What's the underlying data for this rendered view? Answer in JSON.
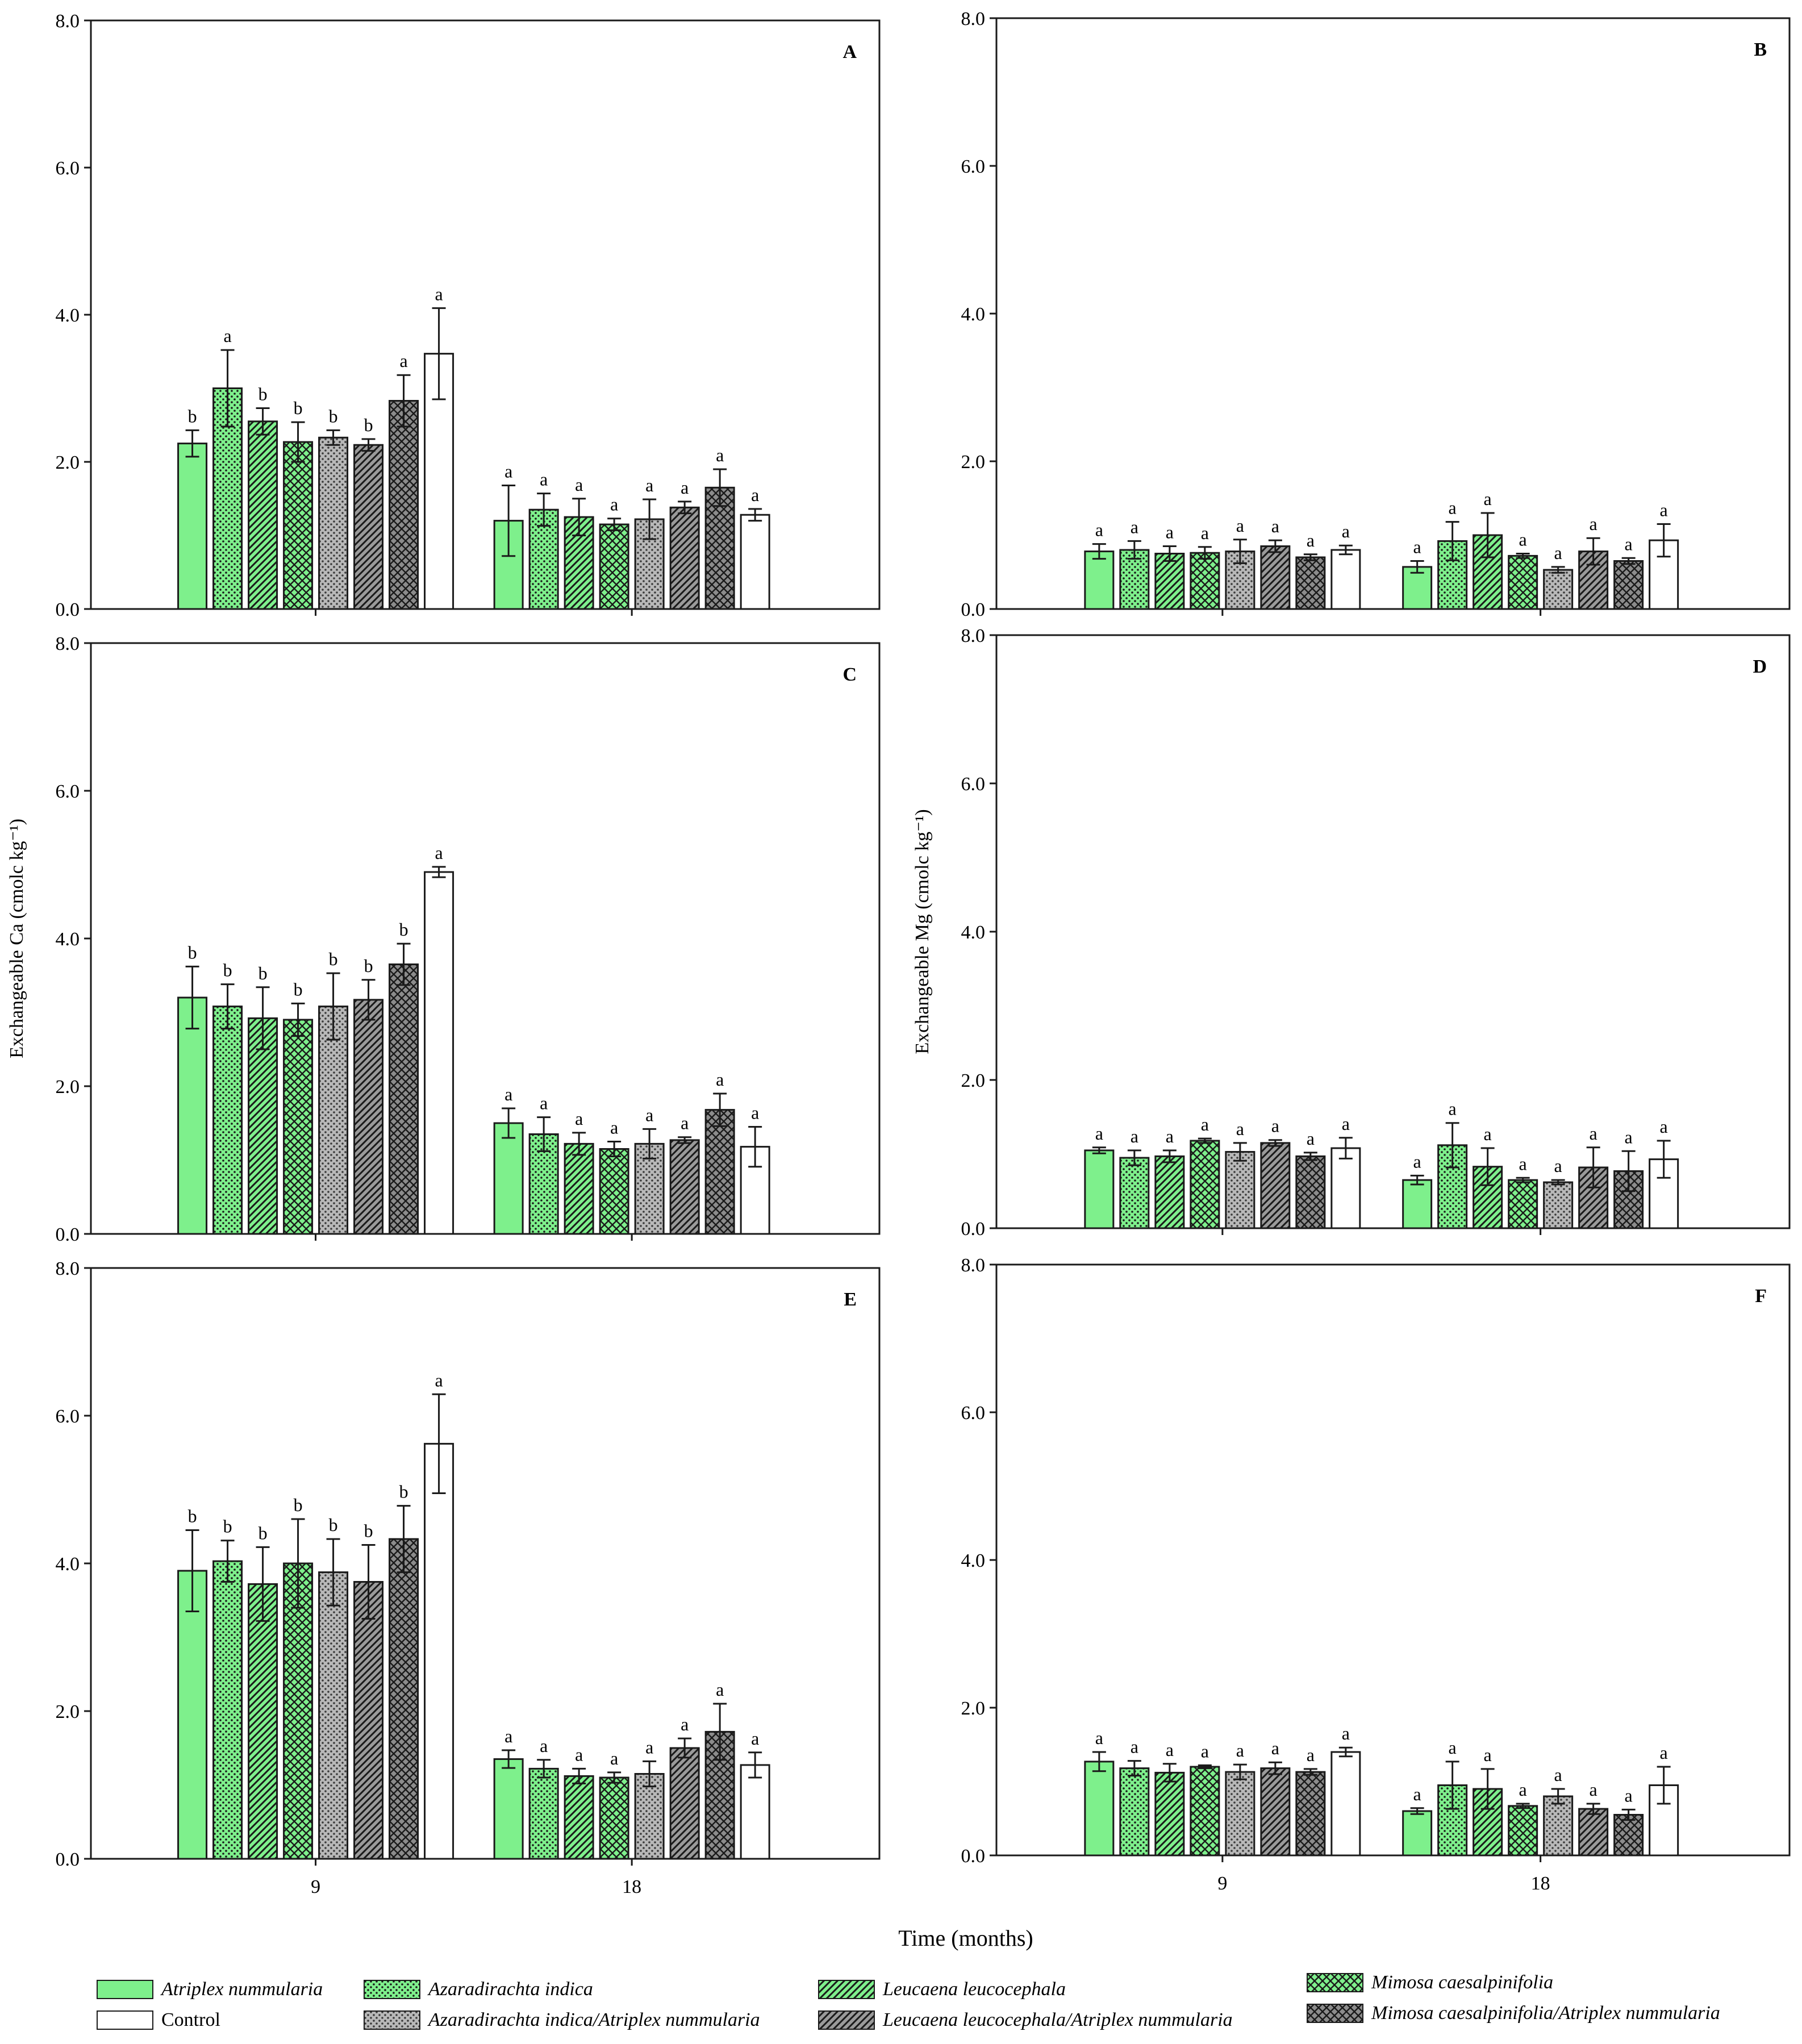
{
  "colors": {
    "green": "#7ef08c",
    "white": "#ffffff",
    "gray": "#b4b4b4",
    "darkgray": "#8c8c8c",
    "stroke": "#1a1a1a"
  },
  "figure": {
    "x_title": "Time (months)",
    "y_title_ca": "Exchangeable Ca (cmolc kg⁻¹)",
    "y_title_mg": "Exchangeable Mg (cmolc kg⁻¹)"
  },
  "chart_data": [
    {
      "type": "bar",
      "panel": "A",
      "title": "A",
      "xlabel": "Time (months)",
      "ylabel": "",
      "ylim": [
        0,
        8
      ],
      "yticks": [
        "0.0",
        "2.0",
        "4.0",
        "6.0",
        "8.0"
      ],
      "categories": [
        "9",
        "18"
      ],
      "series": [
        {
          "name": "Atriplex nummularia",
          "values": [
            2.25,
            1.2
          ],
          "errors": [
            0.18,
            0.48
          ],
          "letters": [
            "b",
            "a"
          ]
        },
        {
          "name": "Azaradirachta indica",
          "values": [
            3.0,
            1.35
          ],
          "errors": [
            0.52,
            0.22
          ],
          "letters": [
            "a",
            "a"
          ]
        },
        {
          "name": "Leucaena leucocephala",
          "values": [
            2.55,
            1.25
          ],
          "errors": [
            0.18,
            0.25
          ],
          "letters": [
            "b",
            "a"
          ]
        },
        {
          "name": "Mimosa caesalpinifolia",
          "values": [
            2.27,
            1.15
          ],
          "errors": [
            0.27,
            0.08
          ],
          "letters": [
            "b",
            "a"
          ]
        },
        {
          "name": "Azaradirachta indica/Atriplex nummularia",
          "values": [
            2.33,
            1.22
          ],
          "errors": [
            0.1,
            0.27
          ],
          "letters": [
            "b",
            "a"
          ]
        },
        {
          "name": "Leucaena leucocephala/Atriplex nummularia",
          "values": [
            2.23,
            1.38
          ],
          "errors": [
            0.08,
            0.08
          ],
          "letters": [
            "b",
            "a"
          ]
        },
        {
          "name": "Mimosa caesalpinifolia/Atriplex nummularia",
          "values": [
            2.83,
            1.65
          ],
          "errors": [
            0.35,
            0.25
          ],
          "letters": [
            "a",
            "a"
          ]
        },
        {
          "name": "Control",
          "values": [
            3.47,
            1.28
          ],
          "errors": [
            0.62,
            0.08
          ],
          "letters": [
            "a",
            "a"
          ]
        }
      ]
    },
    {
      "type": "bar",
      "panel": "B",
      "title": "B",
      "xlabel": "Time (months)",
      "ylabel": "",
      "ylim": [
        0,
        8
      ],
      "yticks": [
        "0.0",
        "2.0",
        "4.0",
        "6.0",
        "8.0"
      ],
      "categories": [
        "9",
        "18"
      ],
      "series": [
        {
          "name": "Atriplex nummularia",
          "values": [
            0.78,
            0.57
          ],
          "errors": [
            0.1,
            0.08
          ],
          "letters": [
            "a",
            "a"
          ]
        },
        {
          "name": "Azaradirachta indica",
          "values": [
            0.8,
            0.92
          ],
          "errors": [
            0.12,
            0.26
          ],
          "letters": [
            "a",
            "a"
          ]
        },
        {
          "name": "Leucaena leucocephala",
          "values": [
            0.75,
            1.0
          ],
          "errors": [
            0.1,
            0.3
          ],
          "letters": [
            "a",
            "a"
          ]
        },
        {
          "name": "Mimosa caesalpinifolia",
          "values": [
            0.76,
            0.72
          ],
          "errors": [
            0.08,
            0.03
          ],
          "letters": [
            "a",
            "a"
          ]
        },
        {
          "name": "Azaradirachta indica/Atriplex nummularia",
          "values": [
            0.78,
            0.53
          ],
          "errors": [
            0.16,
            0.04
          ],
          "letters": [
            "a",
            "a"
          ]
        },
        {
          "name": "Leucaena leucocephala/Atriplex nummularia",
          "values": [
            0.85,
            0.78
          ],
          "errors": [
            0.08,
            0.18
          ],
          "letters": [
            "a",
            "a"
          ]
        },
        {
          "name": "Mimosa caesalpinifolia/Atriplex nummularia",
          "values": [
            0.7,
            0.65
          ],
          "errors": [
            0.04,
            0.04
          ],
          "letters": [
            "a",
            "a"
          ]
        },
        {
          "name": "Control",
          "values": [
            0.8,
            0.93
          ],
          "errors": [
            0.06,
            0.22
          ],
          "letters": [
            "a",
            "a"
          ]
        }
      ]
    },
    {
      "type": "bar",
      "panel": "C",
      "title": "C",
      "xlabel": "Time (months)",
      "ylabel": "Exchangeable Ca (cmolc kg⁻¹)",
      "ylim": [
        0,
        8
      ],
      "yticks": [
        "0.0",
        "2.0",
        "4.0",
        "6.0",
        "8.0"
      ],
      "categories": [
        "9",
        "18"
      ],
      "series": [
        {
          "name": "Atriplex nummularia",
          "values": [
            3.2,
            1.5
          ],
          "errors": [
            0.42,
            0.2
          ],
          "letters": [
            "b",
            "a"
          ]
        },
        {
          "name": "Azaradirachta indica",
          "values": [
            3.08,
            1.35
          ],
          "errors": [
            0.3,
            0.23
          ],
          "letters": [
            "b",
            "a"
          ]
        },
        {
          "name": "Leucaena leucocephala",
          "values": [
            2.92,
            1.22
          ],
          "errors": [
            0.42,
            0.15
          ],
          "letters": [
            "b",
            "a"
          ]
        },
        {
          "name": "Mimosa caesalpinifolia",
          "values": [
            2.9,
            1.15
          ],
          "errors": [
            0.22,
            0.1
          ],
          "letters": [
            "b",
            "a"
          ]
        },
        {
          "name": "Azaradirachta indica/Atriplex nummularia",
          "values": [
            3.08,
            1.22
          ],
          "errors": [
            0.45,
            0.2
          ],
          "letters": [
            "b",
            "a"
          ]
        },
        {
          "name": "Leucaena leucocephala/Atriplex nummularia",
          "values": [
            3.17,
            1.27
          ],
          "errors": [
            0.27,
            0.04
          ],
          "letters": [
            "b",
            "a"
          ]
        },
        {
          "name": "Mimosa caesalpinifolia/Atriplex nummularia",
          "values": [
            3.65,
            1.68
          ],
          "errors": [
            0.28,
            0.22
          ],
          "letters": [
            "b",
            "a"
          ]
        },
        {
          "name": "Control",
          "values": [
            4.9,
            1.18
          ],
          "errors": [
            0.07,
            0.27
          ],
          "letters": [
            "a",
            "a"
          ]
        }
      ]
    },
    {
      "type": "bar",
      "panel": "D",
      "title": "D",
      "xlabel": "Time (months)",
      "ylabel": "Exchangeable Mg (cmolc kg⁻¹)",
      "ylim": [
        0,
        8
      ],
      "yticks": [
        "0.0",
        "2.0",
        "4.0",
        "6.0",
        "8.0"
      ],
      "categories": [
        "9",
        "18"
      ],
      "series": [
        {
          "name": "Atriplex nummularia",
          "values": [
            1.05,
            0.65
          ],
          "errors": [
            0.04,
            0.06
          ],
          "letters": [
            "a",
            "a"
          ]
        },
        {
          "name": "Azaradirachta indica",
          "values": [
            0.95,
            1.12
          ],
          "errors": [
            0.1,
            0.3
          ],
          "letters": [
            "a",
            "a"
          ]
        },
        {
          "name": "Leucaena leucocephala",
          "values": [
            0.97,
            0.83
          ],
          "errors": [
            0.08,
            0.25
          ],
          "letters": [
            "a",
            "a"
          ]
        },
        {
          "name": "Mimosa caesalpinifolia",
          "values": [
            1.18,
            0.65
          ],
          "errors": [
            0.03,
            0.03
          ],
          "letters": [
            "a",
            "a"
          ]
        },
        {
          "name": "Azaradirachta indica/Atriplex nummularia",
          "values": [
            1.03,
            0.62
          ],
          "errors": [
            0.12,
            0.03
          ],
          "letters": [
            "a",
            "a"
          ]
        },
        {
          "name": "Leucaena leucocephala/Atriplex nummularia",
          "values": [
            1.15,
            0.82
          ],
          "errors": [
            0.04,
            0.27
          ],
          "letters": [
            "a",
            "a"
          ]
        },
        {
          "name": "Mimosa caesalpinifolia/Atriplex nummularia",
          "values": [
            0.97,
            0.77
          ],
          "errors": [
            0.05,
            0.27
          ],
          "letters": [
            "a",
            "a"
          ]
        },
        {
          "name": "Control",
          "values": [
            1.08,
            0.93
          ],
          "errors": [
            0.14,
            0.25
          ],
          "letters": [
            "a",
            "a"
          ]
        }
      ]
    },
    {
      "type": "bar",
      "panel": "E",
      "title": "E",
      "xlabel": "Time (months)",
      "ylabel": "",
      "ylim": [
        0,
        8
      ],
      "yticks": [
        "0.0",
        "2.0",
        "4.0",
        "6.0",
        "8.0"
      ],
      "categories": [
        "9",
        "18"
      ],
      "series": [
        {
          "name": "Atriplex nummularia",
          "values": [
            3.9,
            1.35
          ],
          "errors": [
            0.55,
            0.12
          ],
          "letters": [
            "b",
            "a"
          ]
        },
        {
          "name": "Azaradirachta indica",
          "values": [
            4.03,
            1.22
          ],
          "errors": [
            0.28,
            0.12
          ],
          "letters": [
            "b",
            "a"
          ]
        },
        {
          "name": "Leucaena leucocephala",
          "values": [
            3.72,
            1.12
          ],
          "errors": [
            0.5,
            0.1
          ],
          "letters": [
            "b",
            "a"
          ]
        },
        {
          "name": "Mimosa caesalpinifolia",
          "values": [
            4.0,
            1.1
          ],
          "errors": [
            0.6,
            0.07
          ],
          "letters": [
            "b",
            "a"
          ]
        },
        {
          "name": "Azaradirachta indica/Atriplex nummularia",
          "values": [
            3.88,
            1.15
          ],
          "errors": [
            0.45,
            0.17
          ],
          "letters": [
            "b",
            "a"
          ]
        },
        {
          "name": "Leucaena leucocephala/Atriplex nummularia",
          "values": [
            3.75,
            1.5
          ],
          "errors": [
            0.5,
            0.13
          ],
          "letters": [
            "b",
            "a"
          ]
        },
        {
          "name": "Mimosa caesalpinifolia/Atriplex nummularia",
          "values": [
            4.33,
            1.72
          ],
          "errors": [
            0.45,
            0.38
          ],
          "letters": [
            "b",
            "a"
          ]
        },
        {
          "name": "Control",
          "values": [
            5.62,
            1.27
          ],
          "errors": [
            0.67,
            0.17
          ],
          "letters": [
            "a",
            "a"
          ]
        }
      ]
    },
    {
      "type": "bar",
      "panel": "F",
      "title": "F",
      "xlabel": "Time (months)",
      "ylabel": "",
      "ylim": [
        0,
        8
      ],
      "yticks": [
        "0.0",
        "2.0",
        "4.0",
        "6.0",
        "8.0"
      ],
      "categories": [
        "9",
        "18"
      ],
      "series": [
        {
          "name": "Atriplex nummularia",
          "values": [
            1.27,
            0.6
          ],
          "errors": [
            0.13,
            0.04
          ],
          "letters": [
            "a",
            "a"
          ]
        },
        {
          "name": "Azaradirachta indica",
          "values": [
            1.18,
            0.95
          ],
          "errors": [
            0.1,
            0.32
          ],
          "letters": [
            "a",
            "a"
          ]
        },
        {
          "name": "Leucaena leucocephala",
          "values": [
            1.12,
            0.9
          ],
          "errors": [
            0.12,
            0.27
          ],
          "letters": [
            "a",
            "a"
          ]
        },
        {
          "name": "Mimosa caesalpinifolia",
          "values": [
            1.2,
            0.67
          ],
          "errors": [
            0.02,
            0.03
          ],
          "letters": [
            "a",
            "a"
          ]
        },
        {
          "name": "Azaradirachta indica/Atriplex nummularia",
          "values": [
            1.13,
            0.8
          ],
          "errors": [
            0.1,
            0.1
          ],
          "letters": [
            "a",
            "a"
          ]
        },
        {
          "name": "Leucaena leucocephala/Atriplex nummularia",
          "values": [
            1.18,
            0.63
          ],
          "errors": [
            0.08,
            0.07
          ],
          "letters": [
            "a",
            "a"
          ]
        },
        {
          "name": "Mimosa caesalpinifolia/Atriplex nummularia",
          "values": [
            1.13,
            0.55
          ],
          "errors": [
            0.04,
            0.07
          ],
          "letters": [
            "a",
            "a"
          ]
        },
        {
          "name": "Control",
          "values": [
            1.4,
            0.95
          ],
          "errors": [
            0.06,
            0.25
          ],
          "letters": [
            "a",
            "a"
          ]
        }
      ]
    }
  ],
  "legend": {
    "items": [
      {
        "label": "Atriplex nummularia",
        "style": "green-solid"
      },
      {
        "label": "Azaradirachta indica",
        "style": "green-dots"
      },
      {
        "label": "Leucaena leucocephala",
        "style": "green-diag"
      },
      {
        "label": "Mimosa caesalpinifolia",
        "style": "green-cross"
      },
      {
        "label": "Control",
        "style": "white"
      },
      {
        "label": "Azaradirachta indica/Atriplex nummularia",
        "style": "gray-dots"
      },
      {
        "label": "Leucaena leucocephala/Atriplex nummularia",
        "style": "gray-diag"
      },
      {
        "label": "Mimosa caesalpinifolia/Atriplex nummularia",
        "style": "gray-cross"
      }
    ]
  }
}
